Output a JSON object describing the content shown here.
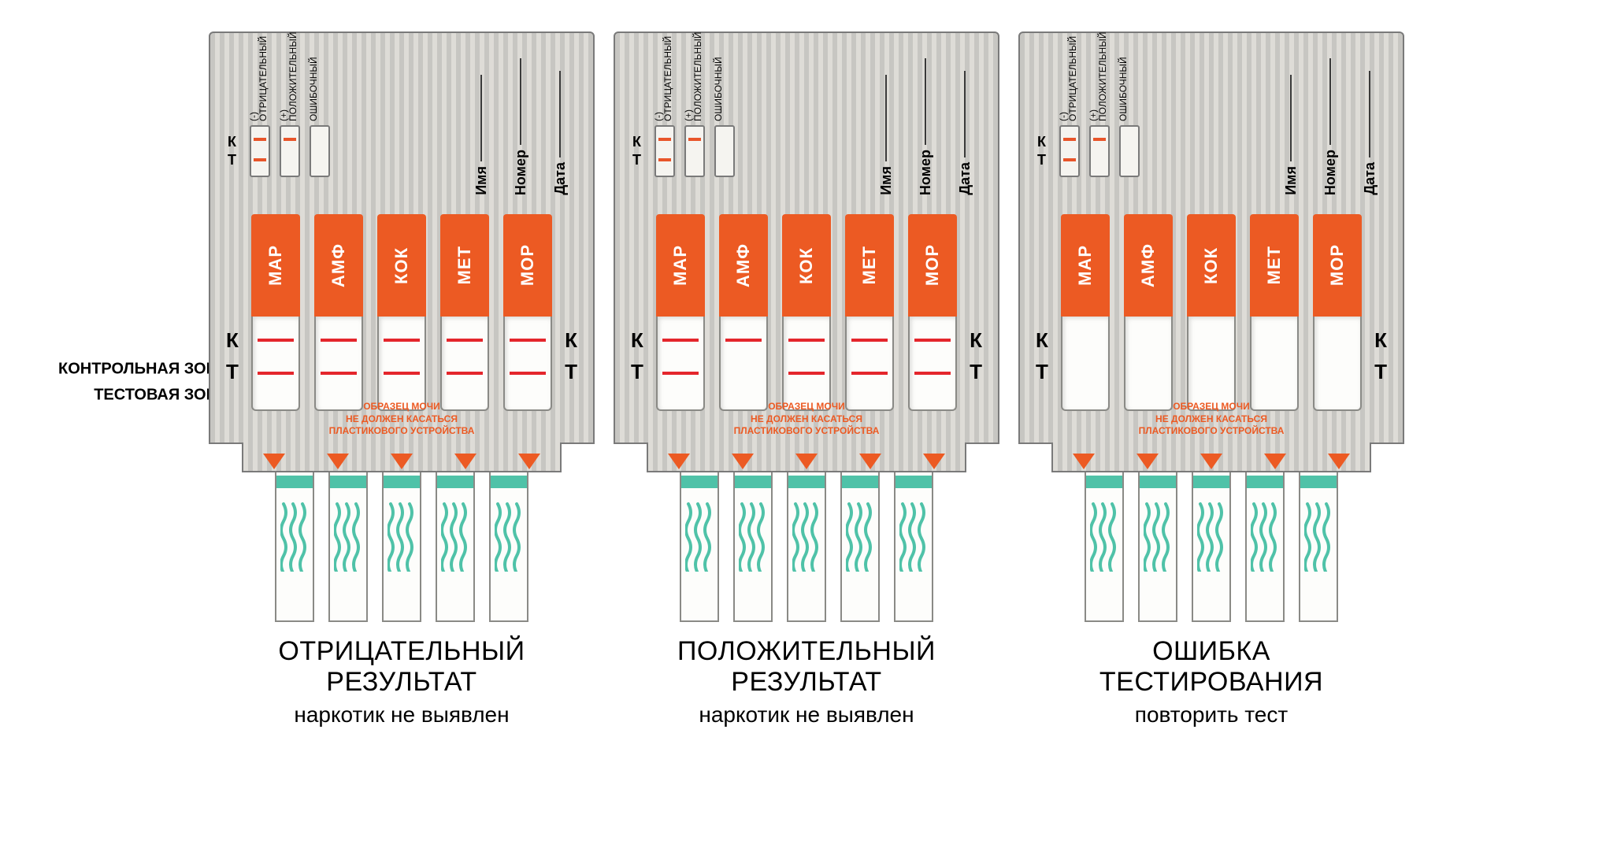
{
  "colors": {
    "orange": "#ec5a23",
    "line_red": "#e4262c",
    "teal": "#4fc2a8",
    "instruction": "#ec5a23",
    "body_border": "#7a7a7a",
    "text": "#000000"
  },
  "left_labels": {
    "control": "КОНТРОЛЬНАЯ ЗОНА",
    "test": "ТЕСТОВАЯ ЗОНА"
  },
  "legend": {
    "k": "К",
    "t": "Т",
    "items": [
      {
        "label": "(-) ОТРИЦАТЕЛЬНЫЙ",
        "lines": [
          "c",
          "t"
        ]
      },
      {
        "label": "(+) ПОЛОЖИТЕЛЬНЫЙ",
        "lines": [
          "c"
        ]
      },
      {
        "label": "ОШИБОЧНЫЙ",
        "lines": []
      }
    ]
  },
  "fields": [
    "Имя",
    "Номер",
    "Дата"
  ],
  "drugs": [
    "МАР",
    "АМФ",
    "КОК",
    "МЕТ",
    "МОР"
  ],
  "instruction_lines": [
    "ОБРАЗЕЦ МОЧИ",
    "НЕ ДОЛЖЕН КАСАТЬСЯ",
    "ПЛАСТИКОВОГО УСТРОЙСТВА"
  ],
  "kt_side": {
    "k": "К",
    "t": "Т"
  },
  "panels": [
    {
      "id": "negative",
      "title_line1": "ОТРИЦАТЕЛЬНЫЙ",
      "title_line2": "РЕЗУЛЬТАТ",
      "subtitle": "наркотик не выявлен",
      "strip_lines": [
        [
          "c",
          "t"
        ],
        [
          "c",
          "t"
        ],
        [
          "c",
          "t"
        ],
        [
          "c",
          "t"
        ],
        [
          "c",
          "t"
        ]
      ]
    },
    {
      "id": "positive",
      "title_line1": "ПОЛОЖИТЕЛЬНЫЙ",
      "title_line2": "РЕЗУЛЬТАТ",
      "subtitle": "наркотик не выявлен",
      "strip_lines": [
        [
          "c",
          "t"
        ],
        [
          "c"
        ],
        [
          "c",
          "t"
        ],
        [
          "c",
          "t"
        ],
        [
          "c",
          "t"
        ]
      ]
    },
    {
      "id": "error",
      "title_line1": "ОШИБКА",
      "title_line2": "ТЕСТИРОВАНИЯ",
      "subtitle": "повторить тест",
      "strip_lines": [
        [],
        [],
        [],
        [],
        []
      ]
    }
  ]
}
